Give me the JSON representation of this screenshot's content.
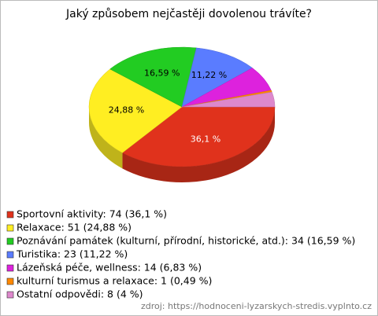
{
  "chart_data": {
    "type": "pie",
    "title": "Jaký způsobem nejčastěji dovolenou trávíte?",
    "categories": [
      "Sportovní aktivity: 74 (36,1 %)",
      "Relaxace: 51 (24,88 %)",
      "Poznávání památek (kulturní, přírodní, historické, atd.): 34 (16,59 %)",
      "Turistika: 23 (11,22 %)",
      "Lázeňská péče, wellness: 14 (6,83 %)",
      "kulturní turismus a relaxace: 1 (0,49 %)",
      "Ostatní odpovědi: 8 (4 %)"
    ],
    "values": [
      36.1,
      24.88,
      16.59,
      11.22,
      6.83,
      0.49,
      4
    ],
    "value_labels": [
      "36,1 %",
      "24,88 %",
      "16,59 %",
      "11,22 %",
      null,
      null,
      null
    ],
    "colors": [
      "#e0321c",
      "#ffee22",
      "#22cc22",
      "#5a7cff",
      "#dd22dd",
      "#ff8800",
      "#dd88cc"
    ],
    "source": "zdroj: https://hodnoceni-lyzarskych-stredis.vyplnto.cz"
  }
}
